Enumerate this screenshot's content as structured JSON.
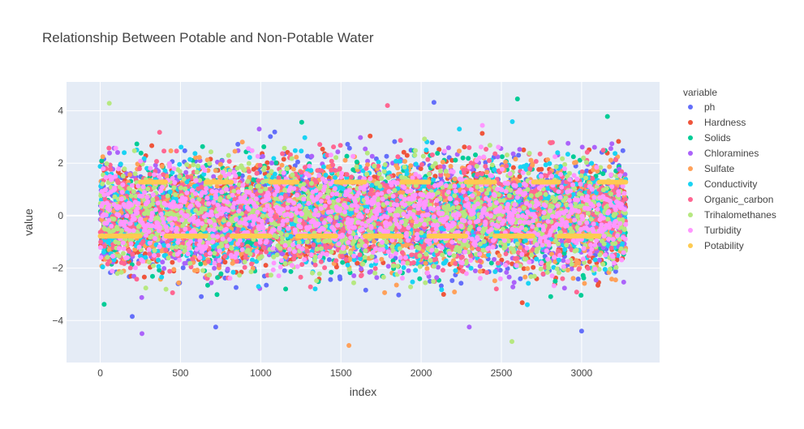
{
  "chart_data": {
    "type": "scatter",
    "title": "Relationship Between Potable and Non-Potable Water",
    "xlabel": "index",
    "ylabel": "value",
    "xlim": [
      -210,
      3486
    ],
    "ylim": [
      -5.6,
      5.1
    ],
    "xticks": [
      0,
      500,
      1000,
      1500,
      2000,
      2500,
      3000
    ],
    "xtick_labels": [
      "0",
      "500",
      "1000",
      "1500",
      "2000",
      "2500",
      "3000"
    ],
    "yticks": [
      -4,
      -2,
      0,
      2,
      4
    ],
    "ytick_labels": [
      "−4",
      "−2",
      "0",
      "2",
      "4"
    ],
    "n_points": 3276,
    "grid": true,
    "legend_title": "variable",
    "legend_position": "right",
    "series": [
      {
        "name": "ph",
        "color": "#636efa"
      },
      {
        "name": "Hardness",
        "color": "#EF553B"
      },
      {
        "name": "Solids",
        "color": "#00cc96"
      },
      {
        "name": "Chloramines",
        "color": "#ab63fa"
      },
      {
        "name": "Sulfate",
        "color": "#FFA15A"
      },
      {
        "name": "Conductivity",
        "color": "#19d3f3"
      },
      {
        "name": "Organic_carbon",
        "color": "#FF6692"
      },
      {
        "name": "Trihalomethanes",
        "color": "#B6E880"
      },
      {
        "name": "Turbidity",
        "color": "#FF97FF"
      },
      {
        "name": "Potability",
        "color": "#FECB52"
      }
    ],
    "potability_levels": {
      "not_potable": -0.78,
      "potable": 1.28
    },
    "potability_runs": [
      {
        "x0": 0,
        "x1": 250,
        "level": "not_potable"
      },
      {
        "x0": 250,
        "x1": 410,
        "level": "potable"
      },
      {
        "x0": 410,
        "x1": 660,
        "level": "not_potable"
      },
      {
        "x0": 660,
        "x1": 820,
        "level": "potable"
      },
      {
        "x0": 820,
        "x1": 1060,
        "level": "not_potable"
      },
      {
        "x0": 1060,
        "x1": 1230,
        "level": "potable"
      },
      {
        "x0": 1230,
        "x1": 1470,
        "level": "not_potable"
      },
      {
        "x0": 1470,
        "x1": 1650,
        "level": "potable"
      },
      {
        "x0": 1650,
        "x1": 1880,
        "level": "not_potable"
      },
      {
        "x0": 1880,
        "x1": 2050,
        "level": "potable"
      },
      {
        "x0": 2050,
        "x1": 2280,
        "level": "not_potable"
      },
      {
        "x0": 2280,
        "x1": 2460,
        "level": "potable"
      },
      {
        "x0": 2460,
        "x1": 2700,
        "level": "not_potable"
      },
      {
        "x0": 2700,
        "x1": 2860,
        "level": "potable"
      },
      {
        "x0": 2860,
        "x1": 3110,
        "level": "not_potable"
      },
      {
        "x0": 3110,
        "x1": 3276,
        "level": "potable"
      }
    ],
    "notable_points": [
      {
        "series": "Sulfate",
        "x": 1550,
        "y": -4.95
      },
      {
        "series": "Chloramines",
        "x": 260,
        "y": -4.5
      },
      {
        "series": "ph",
        "x": 2080,
        "y": 4.32
      },
      {
        "series": "Solids",
        "x": 2600,
        "y": 4.45
      },
      {
        "series": "ph",
        "x": 3000,
        "y": -4.4
      },
      {
        "series": "Organic_carbon",
        "x": 1790,
        "y": 4.2
      },
      {
        "series": "ph",
        "x": 720,
        "y": -4.25
      },
      {
        "series": "Chloramines",
        "x": 2300,
        "y": -4.25
      }
    ]
  }
}
